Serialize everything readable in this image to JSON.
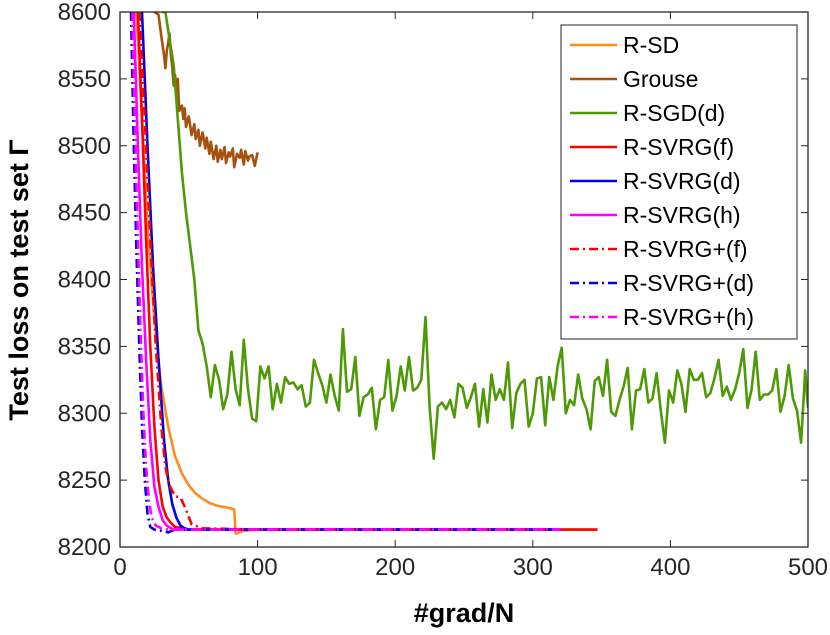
{
  "chart_data": {
    "type": "line",
    "title": "",
    "xlabel": "#grad/N",
    "ylabel": "Test loss on test set Γ",
    "xlim": [
      0,
      500
    ],
    "ylim": [
      8200,
      8600
    ],
    "xticks": [
      0,
      100,
      200,
      300,
      400,
      500
    ],
    "yticks": [
      8200,
      8250,
      8300,
      8350,
      8400,
      8450,
      8500,
      8550,
      8600
    ],
    "grid": false,
    "legend_position": "top-right",
    "series": [
      {
        "name": "R-SD",
        "color": "#ff8c1a",
        "style": "solid",
        "x": [
          12,
          16,
          20,
          25,
          30,
          35,
          40,
          45,
          50,
          55,
          60,
          65,
          70,
          75,
          80,
          83,
          84,
          90,
          100,
          150,
          200,
          250,
          300,
          347
        ],
        "y": [
          8600,
          8520,
          8440,
          8370,
          8320,
          8290,
          8268,
          8255,
          8246,
          8240,
          8236,
          8233,
          8231,
          8230,
          8229,
          8228,
          8210,
          8212,
          8213,
          8213,
          8213,
          8213,
          8213,
          8213
        ]
      },
      {
        "name": "Grouse",
        "color": "#a5520f",
        "style": "solid",
        "x": [
          25,
          28,
          30,
          32,
          33,
          34,
          35,
          36,
          37,
          38,
          39,
          40,
          41,
          42,
          43,
          45,
          46,
          47,
          48,
          50,
          52,
          54,
          55,
          57,
          58,
          60,
          62,
          63,
          65,
          66,
          68,
          70,
          71,
          73,
          74,
          76,
          77,
          79,
          80,
          82,
          83,
          85,
          87,
          88,
          90,
          91,
          93,
          94,
          96,
          98,
          99,
          100
        ],
        "y": [
          8600,
          8598,
          8582,
          8568,
          8558,
          8571,
          8577,
          8584,
          8568,
          8559,
          8545,
          8553,
          8540,
          8550,
          8526,
          8530,
          8520,
          8528,
          8514,
          8522,
          8508,
          8516,
          8505,
          8512,
          8500,
          8510,
          8498,
          8506,
          8494,
          8503,
          8490,
          8500,
          8488,
          8497,
          8490,
          8499,
          8487,
          8495,
          8492,
          8498,
          8484,
          8494,
          8491,
          8497,
          8486,
          8496,
          8489,
          8492,
          8493,
          8485,
          8490,
          8495
        ]
      },
      {
        "name": "R-SGD(d)",
        "color": "#4e9a06",
        "style": "solid",
        "x": [
          30,
          33,
          36,
          39,
          42,
          45,
          48,
          51,
          54,
          57,
          60,
          63,
          66,
          69,
          72,
          75,
          78,
          81,
          84,
          87,
          90,
          93,
          96,
          99,
          102,
          105,
          108,
          111,
          114,
          117,
          120,
          123,
          126,
          129,
          132,
          135,
          138,
          141,
          144,
          147,
          150,
          153,
          156,
          159,
          162,
          165,
          168,
          171,
          174,
          177,
          180,
          183,
          186,
          189,
          192,
          195,
          198,
          201,
          204,
          207,
          210,
          213,
          216,
          219,
          222,
          225,
          228,
          231,
          234,
          237,
          240,
          243,
          246,
          249,
          252,
          255,
          258,
          261,
          264,
          267,
          270,
          273,
          276,
          279,
          282,
          285,
          288,
          291,
          294,
          297,
          300,
          303,
          306,
          309,
          312,
          315,
          318,
          321,
          324,
          327,
          330,
          333,
          336,
          339,
          342,
          345,
          348,
          351,
          354,
          357,
          360,
          363,
          366,
          369,
          372,
          375,
          378,
          381,
          384,
          387,
          390,
          393,
          396,
          399,
          402,
          405,
          408,
          411,
          414,
          417,
          420,
          423,
          426,
          429,
          432,
          435,
          438,
          441,
          444,
          447,
          450,
          453,
          456,
          459,
          462,
          465,
          468,
          471,
          474,
          477,
          480,
          483,
          486,
          489,
          492,
          495,
          498,
          500
        ],
        "y": [
          8600,
          8600,
          8580,
          8560,
          8520,
          8480,
          8450,
          8425,
          8400,
          8362,
          8352,
          8335,
          8312,
          8336,
          8325,
          8303,
          8314,
          8346,
          8318,
          8306,
          8355,
          8318,
          8296,
          8294,
          8335,
          8326,
          8335,
          8303,
          8322,
          8308,
          8327,
          8322,
          8323,
          8318,
          8321,
          8305,
          8308,
          8340,
          8330,
          8321,
          8308,
          8329,
          8313,
          8302,
          8363,
          8316,
          8318,
          8342,
          8298,
          8312,
          8314,
          8319,
          8288,
          8310,
          8312,
          8340,
          8302,
          8313,
          8335,
          8317,
          8342,
          8317,
          8319,
          8325,
          8372,
          8305,
          8266,
          8305,
          8308,
          8303,
          8310,
          8297,
          8322,
          8319,
          8304,
          8312,
          8322,
          8290,
          8318,
          8293,
          8329,
          8310,
          8318,
          8310,
          8338,
          8289,
          8315,
          8322,
          8325,
          8290,
          8300,
          8326,
          8327,
          8291,
          8327,
          8310,
          8335,
          8349,
          8300,
          8310,
          8306,
          8329,
          8311,
          8303,
          8288,
          8324,
          8327,
          8313,
          8340,
          8301,
          8298,
          8310,
          8320,
          8334,
          8288,
          8317,
          8318,
          8333,
          8308,
          8311,
          8330,
          8302,
          8278,
          8317,
          8308,
          8332,
          8322,
          8301,
          8333,
          8325,
          8325,
          8330,
          8312,
          8315,
          8326,
          8340,
          8313,
          8320,
          8310,
          8318,
          8330,
          8348,
          8304,
          8318,
          8346,
          8310,
          8314,
          8314,
          8317,
          8333,
          8301,
          8313,
          8336,
          8311,
          8302,
          8278,
          8332,
          8304
        ]
      },
      {
        "name": "R-SVRG(f)",
        "color": "#ff0000",
        "style": "solid",
        "x": [
          13,
          16,
          19,
          22,
          25,
          28,
          31,
          34,
          37,
          40,
          45,
          50,
          100,
          200,
          300,
          347
        ],
        "y": [
          8600,
          8520,
          8430,
          8350,
          8290,
          8250,
          8230,
          8222,
          8218,
          8215,
          8214,
          8213,
          8213,
          8213,
          8213,
          8213
        ]
      },
      {
        "name": "R-SVRG(d)",
        "color": "#0000e6",
        "style": "solid",
        "x": [
          16,
          20,
          24,
          28,
          32,
          35,
          38,
          41,
          44,
          47,
          50,
          100,
          200,
          300,
          320
        ],
        "y": [
          8600,
          8500,
          8410,
          8340,
          8280,
          8250,
          8232,
          8222,
          8216,
          8214,
          8213,
          8213,
          8213,
          8213,
          8213
        ]
      },
      {
        "name": "R-SVRG(h)",
        "color": "#ff00ff",
        "style": "solid",
        "x": [
          10,
          13,
          16,
          19,
          22,
          25,
          28,
          31,
          34,
          37,
          40,
          50,
          100,
          200,
          300,
          320
        ],
        "y": [
          8600,
          8500,
          8410,
          8340,
          8280,
          8245,
          8230,
          8220,
          8216,
          8214,
          8213,
          8213,
          8213,
          8213,
          8213,
          8213
        ]
      },
      {
        "name": "R-SVRG+(f)",
        "color": "#ff0000",
        "style": "dashdot",
        "x": [
          14,
          18,
          22,
          26,
          30,
          33,
          36,
          40,
          44,
          48,
          52,
          60,
          100,
          200,
          300,
          320
        ],
        "y": [
          8600,
          8520,
          8430,
          8350,
          8290,
          8260,
          8246,
          8238,
          8237,
          8228,
          8217,
          8214,
          8213,
          8213,
          8213,
          8213
        ]
      },
      {
        "name": "R-SVRG+(d)",
        "color": "#0000e6",
        "style": "dashdot",
        "x": [
          8,
          10,
          12,
          14,
          16,
          18,
          20,
          22,
          25,
          30,
          35,
          40,
          50,
          100,
          200,
          300,
          320
        ],
        "y": [
          8600,
          8500,
          8420,
          8350,
          8290,
          8250,
          8225,
          8215,
          8213,
          8212,
          8211,
          8213,
          8213,
          8213,
          8213,
          8213,
          8213
        ]
      },
      {
        "name": "R-SVRG+(h)",
        "color": "#ff00ff",
        "style": "dashdot",
        "x": [
          9,
          11,
          13,
          15,
          17,
          19,
          21,
          23,
          26,
          30,
          35,
          40,
          50,
          100,
          200,
          300,
          320
        ],
        "y": [
          8600,
          8510,
          8430,
          8360,
          8300,
          8260,
          8235,
          8222,
          8216,
          8214,
          8213,
          8213,
          8213,
          8213,
          8213,
          8213,
          8213
        ]
      }
    ]
  }
}
